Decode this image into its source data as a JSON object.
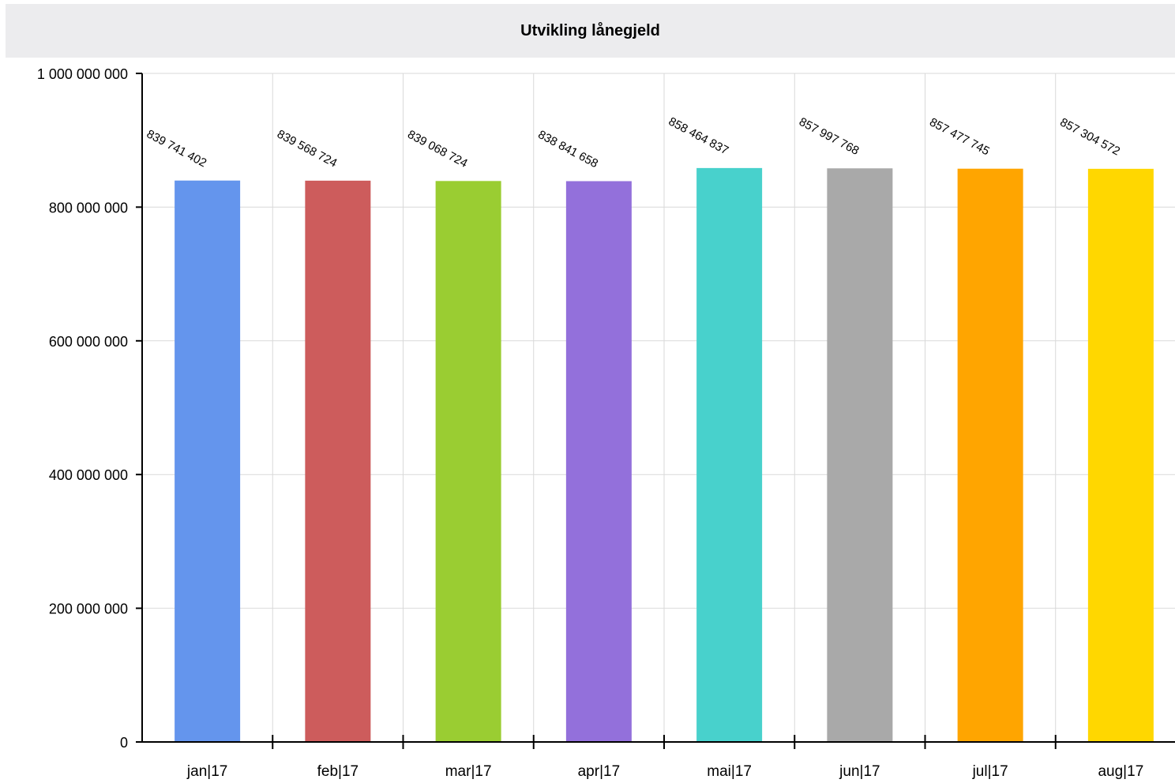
{
  "chart_data": {
    "type": "bar",
    "title": "Utvikling lånegjeld",
    "xlabel": "",
    "ylabel": "",
    "categories": [
      "jan|17",
      "feb|17",
      "mar|17",
      "apr|17",
      "mai|17",
      "jun|17",
      "jul|17",
      "aug|17"
    ],
    "values": [
      839741402,
      839568724,
      839068724,
      838841658,
      858464837,
      857997768,
      857477745,
      857304572
    ],
    "value_labels": [
      "839 741 402",
      "839 568 724",
      "839 068 724",
      "838 841 658",
      "858 464 837",
      "857 997 768",
      "857 477 745",
      "857 304 572"
    ],
    "colors": [
      "#6495ED",
      "#CD5C5C",
      "#9ACD32",
      "#9370DB",
      "#48D1CC",
      "#A9A9A9",
      "#FFA500",
      "#FFD700"
    ],
    "ylim": [
      0,
      1000000000
    ],
    "yticks": [
      0,
      200000000,
      400000000,
      600000000,
      800000000,
      1000000000
    ],
    "ytick_labels": [
      "0",
      "200 000 000",
      "400 000 000",
      "600 000 000",
      "800 000 000",
      "1 000 000 000"
    ],
    "grid": true,
    "legend": "none"
  }
}
